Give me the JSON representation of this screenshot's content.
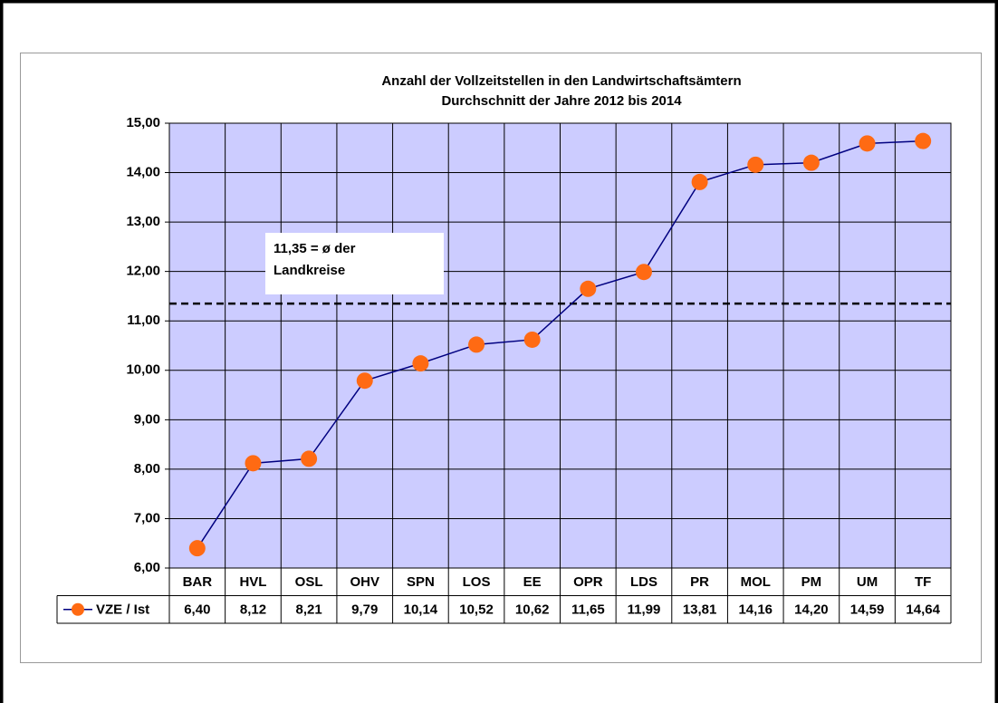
{
  "chart_data": {
    "type": "line",
    "title": [
      "Anzahl der Vollzeitstellen in den Landwirtschaftsämtern",
      "Durchschnitt der Jahre 2012 bis 2014"
    ],
    "categories": [
      "BAR",
      "HVL",
      "OSL",
      "OHV",
      "SPN",
      "LOS",
      "EE",
      "OPR",
      "LDS",
      "PR",
      "MOL",
      "PM",
      "UM",
      "TF"
    ],
    "series": [
      {
        "name": "VZE / Ist",
        "color": "#000080",
        "marker_color": "#ff6a13",
        "values": [
          6.4,
          8.12,
          8.21,
          9.79,
          10.14,
          10.52,
          10.62,
          11.65,
          11.99,
          13.81,
          14.16,
          14.2,
          14.59,
          14.64
        ],
        "value_labels": [
          "6,40",
          "8,12",
          "8,21",
          "9,79",
          "10,14",
          "10,52",
          "10,62",
          "11,65",
          "11,99",
          "13,81",
          "14,16",
          "14,20",
          "14,59",
          "14,64"
        ]
      }
    ],
    "ylim": [
      6,
      15
    ],
    "yticks": [
      {
        "value": 6,
        "label": "6,00"
      },
      {
        "value": 7,
        "label": "7,00"
      },
      {
        "value": 8,
        "label": "8,00"
      },
      {
        "value": 9,
        "label": "9,00"
      },
      {
        "value": 10,
        "label": "10,00"
      },
      {
        "value": 11,
        "label": "11,00"
      },
      {
        "value": 12,
        "label": "12,00"
      },
      {
        "value": 13,
        "label": "13,00"
      },
      {
        "value": 14,
        "label": "14,00"
      },
      {
        "value": 15,
        "label": "15,00"
      }
    ],
    "grid": true,
    "plot_background": "#ccccff",
    "reference_line": {
      "value": 11.35,
      "label": [
        "11,35 = ø der",
        "Landkreise"
      ]
    }
  }
}
